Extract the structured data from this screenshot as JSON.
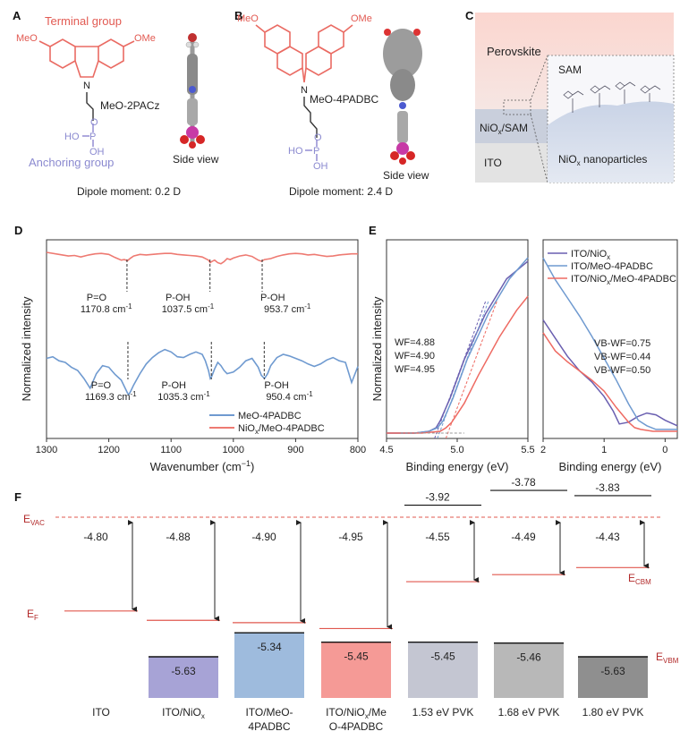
{
  "panel_labels": [
    "A",
    "B",
    "C",
    "D",
    "E",
    "F"
  ],
  "panelA": {
    "terminal_group": "Terminal group",
    "anchoring_group": "Anchoring group",
    "meo_left": "MeO",
    "meo_right": "OMe",
    "nitrogen": "N",
    "phosphorus": "P",
    "oxygen_top": "O",
    "ho": "HO",
    "oh": "OH",
    "molecule_name": "MeO-2PACz",
    "side_view": "Side view",
    "dipole": "Dipole moment: 0.2 D"
  },
  "panelB": {
    "meo_left": "MeO",
    "meo_right": "OMe",
    "nitrogen": "N",
    "phosphorus": "P",
    "oxygen_top": "O",
    "ho": "HO",
    "oh": "OH",
    "molecule_name": "MeO-4PADBC",
    "side_view": "Side view",
    "dipole": "Dipole moment: 2.4 D"
  },
  "panelC": {
    "perovskite": "Perovskite",
    "sam": "SAM",
    "nio_sam_base": "NiO",
    "nio_sam_sub": "x",
    "nio_sam_rest": "/SAM",
    "ito": "ITO",
    "nio_np_base": "NiO",
    "nio_np_sub": "x",
    "nio_np_rest": " nanoparticles"
  },
  "chart_data": [
    {
      "panel": "D",
      "type": "line",
      "xlabel_base": "Wavenumber (cm",
      "xlabel_sup": "−1",
      "xlabel_end": ")",
      "ylabel": "Normalized intensity",
      "xlim": [
        1300,
        800
      ],
      "x_ticks": [
        "1300",
        "1200",
        "1100",
        "1000",
        "900",
        "800"
      ],
      "tick_values": [
        1300,
        1200,
        1100,
        1000,
        900,
        800
      ],
      "series": [
        {
          "name_base": "NiO",
          "name_sub": "x",
          "name_rest": "/MeO-4PADBC",
          "color": "#ee7a72",
          "x": [
            1300,
            1280,
            1265,
            1255,
            1245,
            1232,
            1222,
            1212,
            1200,
            1190,
            1180,
            1175,
            1170,
            1165,
            1160,
            1150,
            1140,
            1130,
            1120,
            1110,
            1100,
            1090,
            1080,
            1070,
            1060,
            1050,
            1040,
            1037,
            1035,
            1030,
            1025,
            1020,
            1015,
            1010,
            1005,
            1000,
            990,
            980,
            970,
            960,
            955,
            950,
            940,
            930,
            920,
            910,
            900,
            890,
            880,
            870,
            860,
            850,
            840,
            830,
            820,
            810,
            800
          ],
          "y": [
            1.0,
            0.96,
            0.93,
            0.94,
            0.91,
            0.95,
            0.97,
            0.98,
            0.96,
            0.9,
            0.85,
            0.86,
            0.84,
            0.89,
            0.93,
            0.96,
            0.95,
            0.96,
            0.97,
            0.98,
            0.98,
            0.96,
            0.95,
            0.94,
            0.93,
            0.91,
            0.85,
            0.8,
            0.82,
            0.85,
            0.8,
            0.78,
            0.82,
            0.88,
            0.86,
            0.89,
            0.93,
            0.95,
            0.92,
            0.85,
            0.83,
            0.86,
            0.88,
            0.92,
            0.95,
            0.97,
            0.98,
            0.97,
            0.95,
            0.96,
            0.94,
            0.92,
            0.93,
            0.95,
            0.96,
            0.97,
            0.97
          ]
        },
        {
          "name": "MeO-4PADBC",
          "color": "#6f9ad0",
          "x": [
            1300,
            1290,
            1280,
            1270,
            1260,
            1250,
            1240,
            1230,
            1220,
            1210,
            1200,
            1190,
            1180,
            1175,
            1170,
            1168,
            1165,
            1160,
            1150,
            1140,
            1130,
            1120,
            1110,
            1100,
            1090,
            1080,
            1070,
            1060,
            1050,
            1045,
            1040,
            1037,
            1035,
            1030,
            1025,
            1020,
            1015,
            1010,
            1000,
            990,
            980,
            970,
            960,
            955,
            950,
            945,
            940,
            930,
            920,
            910,
            900,
            890,
            880,
            870,
            860,
            850,
            840,
            830,
            820,
            810,
            800
          ],
          "y": [
            0.55,
            0.57,
            0.52,
            0.5,
            0.44,
            0.4,
            0.3,
            0.18,
            0.36,
            0.46,
            0.44,
            0.35,
            0.28,
            0.2,
            0.12,
            0.1,
            0.14,
            0.22,
            0.36,
            0.48,
            0.56,
            0.62,
            0.66,
            0.63,
            0.57,
            0.56,
            0.6,
            0.63,
            0.6,
            0.52,
            0.4,
            0.3,
            0.32,
            0.42,
            0.5,
            0.46,
            0.4,
            0.36,
            0.38,
            0.44,
            0.52,
            0.55,
            0.44,
            0.34,
            0.3,
            0.36,
            0.46,
            0.56,
            0.6,
            0.58,
            0.55,
            0.52,
            0.48,
            0.45,
            0.48,
            0.53,
            0.56,
            0.52,
            0.5,
            0.25,
            0.45
          ]
        }
      ],
      "annotations": [
        {
          "label": "P=O",
          "value": "1170.8 cm",
          "x": 1170.8,
          "series": 0
        },
        {
          "label": "P-OH",
          "value": "1037.5 cm",
          "x": 1037.5,
          "series": 0
        },
        {
          "label": "P-OH",
          "value": "953.7 cm",
          "x": 953.7,
          "series": 0
        },
        {
          "label": "P=O",
          "value": "1169.3 cm",
          "x": 1169.3,
          "series": 1
        },
        {
          "label": "P-OH",
          "value": "1035.3 cm",
          "x": 1035.3,
          "series": 1
        },
        {
          "label": "P-OH",
          "value": "950.4 cm",
          "x": 950.4,
          "series": 1
        }
      ],
      "legend_position": "bottom-right"
    },
    {
      "panel": "E",
      "type": "line",
      "xlabel": "Binding energy (eV)",
      "ylabel": "Normalized intensity",
      "left": {
        "xlim": [
          4.5,
          5.5
        ],
        "x_ticks": [
          "4.5",
          "5.0",
          "5.5"
        ],
        "tick_values": [
          4.5,
          5.0,
          5.5
        ],
        "wf_labels": [
          {
            "text": "WF=4.88",
            "color": "#8a7cc4"
          },
          {
            "text": "WF=4.90",
            "color": "#6f9ad0"
          },
          {
            "text": "WF=4.95",
            "color": "#ee6a62"
          }
        ],
        "series": [
          {
            "name": "ITO/NiOx",
            "color": "#6a5fb0",
            "x": [
              4.5,
              4.7,
              4.8,
              4.85,
              4.88,
              4.95,
              5.05,
              5.2,
              5.35,
              5.5
            ],
            "y": [
              0.0,
              0.0,
              0.01,
              0.03,
              0.07,
              0.2,
              0.42,
              0.68,
              0.88,
              0.98
            ]
          },
          {
            "name": "ITO/MeO-4PADBC",
            "color": "#6f9ad0",
            "x": [
              4.5,
              4.7,
              4.8,
              4.86,
              4.9,
              4.97,
              5.07,
              5.22,
              5.37,
              5.5
            ],
            "y": [
              0.0,
              0.0,
              0.01,
              0.03,
              0.07,
              0.2,
              0.42,
              0.68,
              0.88,
              1.0
            ]
          },
          {
            "name": "ITO/NiOx/MeO-4PADBC",
            "color": "#ee6a62",
            "x": [
              4.5,
              4.75,
              4.88,
              4.92,
              4.96,
              5.05,
              5.15,
              5.3,
              5.42,
              5.5
            ],
            "y": [
              0.0,
              0.0,
              0.01,
              0.03,
              0.06,
              0.17,
              0.33,
              0.55,
              0.7,
              0.78
            ]
          }
        ]
      },
      "right": {
        "xlim": [
          2,
          -0.2
        ],
        "x_ticks": [
          "2",
          "1",
          "0"
        ],
        "tick_values": [
          2,
          1,
          0
        ],
        "vb_labels": [
          {
            "text": "VB-WF=0.75",
            "color": "#8a7cc4"
          },
          {
            "text": "VB-WF=0.44",
            "color": "#6f9ad0"
          },
          {
            "text": "VB-WF=0.50",
            "color": "#ee6a62"
          }
        ],
        "series": [
          {
            "name_base": "ITO/NiO",
            "name_sub": "x",
            "name_rest": "",
            "color": "#6a5fb0",
            "x": [
              2.0,
              1.8,
              1.6,
              1.4,
              1.2,
              1.0,
              0.85,
              0.75,
              0.6,
              0.45,
              0.3,
              0.15,
              0.0,
              -0.2
            ],
            "y": [
              0.62,
              0.52,
              0.42,
              0.34,
              0.28,
              0.2,
              0.12,
              0.05,
              0.06,
              0.09,
              0.11,
              0.1,
              0.07,
              0.04
            ]
          },
          {
            "name": "ITO/MeO-4PADBC",
            "color": "#6f9ad0",
            "x": [
              2.0,
              1.8,
              1.6,
              1.4,
              1.2,
              1.0,
              0.8,
              0.6,
              0.44,
              0.3,
              0.15,
              0.0,
              -0.2
            ],
            "y": [
              0.96,
              0.84,
              0.74,
              0.64,
              0.53,
              0.41,
              0.29,
              0.16,
              0.07,
              0.04,
              0.02,
              0.02,
              0.02
            ]
          },
          {
            "name_base": "ITO/NiO",
            "name_sub": "x",
            "name_rest": "/MeO-4PADBC",
            "color": "#ee6a62",
            "x": [
              2.0,
              1.8,
              1.6,
              1.4,
              1.2,
              1.0,
              0.8,
              0.6,
              0.5,
              0.4,
              0.2,
              0.0,
              -0.2
            ],
            "y": [
              0.55,
              0.45,
              0.39,
              0.34,
              0.29,
              0.23,
              0.14,
              0.06,
              0.03,
              0.02,
              0.01,
              0.01,
              0.01
            ]
          }
        ]
      }
    },
    {
      "panel": "F",
      "type": "bar",
      "evac_label": "E",
      "evac_sub": "VAC",
      "ef_label": "E",
      "ef_sub": "F",
      "ecbm_label": "E",
      "ecbm_sub": "CBM",
      "evbm_label": "E",
      "evbm_sub": "VBM",
      "columns": [
        {
          "name": "ITO",
          "ef": "-4.80",
          "ef_value": -4.8,
          "vbm": null,
          "cbm": null,
          "color": null
        },
        {
          "name_lines": [
            "ITO/NiO"
          ],
          "name_sub": "x",
          "ef": "-4.88",
          "ef_value": -4.88,
          "vbm": "-5.63",
          "vbm_value": -5.63,
          "cbm": null,
          "color": "#a7a3d6"
        },
        {
          "name_lines": [
            "ITO/MeO-",
            "4PADBC"
          ],
          "ef": "-4.90",
          "ef_value": -4.9,
          "vbm": "-5.34",
          "vbm_value": -5.34,
          "cbm": null,
          "color": "#9ebbdd"
        },
        {
          "name_lines": [
            "ITO/NiO",
            "O-4PADBC"
          ],
          "name_sub": "x",
          "name_tail": "/Me",
          "ef": "-4.95",
          "ef_value": -4.95,
          "vbm": "-5.45",
          "vbm_value": -5.45,
          "cbm": null,
          "color": "#f59a96"
        },
        {
          "name": "1.53 eV PVK",
          "ef": "-4.55",
          "ef_value": -4.55,
          "vbm": "-5.45",
          "vbm_value": -5.45,
          "cbm": "-3.92",
          "cbm_value": -3.92,
          "color": "#c4c6d2"
        },
        {
          "name": "1.68 eV PVK",
          "ef": "-4.49",
          "ef_value": -4.49,
          "vbm": "-5.46",
          "vbm_value": -5.46,
          "cbm": "-3.78",
          "cbm_value": -3.78,
          "color": "#b8b8b8"
        },
        {
          "name": "1.80 eV PVK",
          "ef": "-4.43",
          "ef_value": -4.43,
          "vbm": "-5.63",
          "vbm_value": -5.63,
          "cbm": "-3.83",
          "cbm_value": -3.83,
          "color": "#8f8f8f"
        }
      ]
    }
  ]
}
